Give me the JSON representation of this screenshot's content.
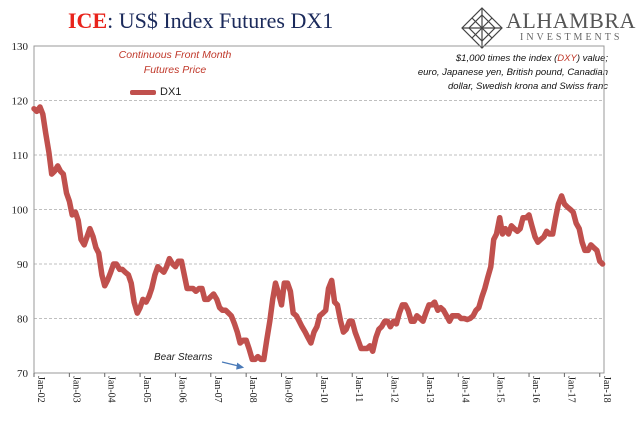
{
  "title_prefix": "ICE",
  "title_rest": ": US$ Index Futures DX1",
  "logo": {
    "name": "ALHAMBRA",
    "sub": "INVESTMENTS",
    "icon": "diamond-lattice-icon"
  },
  "annotation_left": [
    "Continuous Front Month",
    "Futures Price"
  ],
  "annotation_right": {
    "line1_pre": "$1,000 times the index (",
    "line1_dxy": "DXY",
    "line1_post": ") value;",
    "line2": "euro, Japanese yen, British pound, Canadian",
    "line3": "dollar, Swedish krona and Swiss franc"
  },
  "bear_label": "Bear Stearns",
  "colors": {
    "series": "#c0504d",
    "title_red": "#e8231b",
    "title_navy": "#1b2a5b",
    "grid": "#bfbfbf"
  },
  "chart_data": {
    "type": "line",
    "title": "ICE: US$ Index Futures DX1",
    "ylim": [
      70,
      130
    ],
    "yticks": [
      70,
      80,
      90,
      100,
      110,
      120,
      130
    ],
    "xlim": [
      2002.0,
      2018.12
    ],
    "xticks": [
      {
        "x": 2002,
        "year": "02"
      },
      {
        "x": 2003,
        "year": "03"
      },
      {
        "x": 2004,
        "year": "04"
      },
      {
        "x": 2005,
        "year": "05"
      },
      {
        "x": 2006,
        "year": "06"
      },
      {
        "x": 2007,
        "year": "07"
      },
      {
        "x": 2008,
        "year": "08"
      },
      {
        "x": 2009,
        "year": "09"
      },
      {
        "x": 2010,
        "year": "10"
      },
      {
        "x": 2011,
        "year": "11"
      },
      {
        "x": 2012,
        "year": "12"
      },
      {
        "x": 2013,
        "year": "13"
      },
      {
        "x": 2014,
        "year": "14"
      },
      {
        "x": 2015,
        "year": "15"
      },
      {
        "x": 2016,
        "year": "16"
      },
      {
        "x": 2017,
        "year": "17"
      },
      {
        "x": 2018,
        "year": "18"
      }
    ],
    "xtick_prefix": "Jan",
    "grid": true,
    "legend_position": "top-left",
    "series": [
      {
        "name": "DX1",
        "x": [
          2002.0,
          2002.08,
          2002.17,
          2002.25,
          2002.33,
          2002.42,
          2002.5,
          2002.58,
          2002.67,
          2002.75,
          2002.83,
          2002.92,
          2003.0,
          2003.08,
          2003.17,
          2003.25,
          2003.33,
          2003.42,
          2003.5,
          2003.58,
          2003.67,
          2003.75,
          2003.83,
          2003.92,
          2004.0,
          2004.08,
          2004.17,
          2004.25,
          2004.33,
          2004.42,
          2004.5,
          2004.58,
          2004.67,
          2004.75,
          2004.83,
          2004.92,
          2005.0,
          2005.08,
          2005.17,
          2005.25,
          2005.33,
          2005.42,
          2005.5,
          2005.58,
          2005.67,
          2005.75,
          2005.83,
          2005.92,
          2006.0,
          2006.08,
          2006.17,
          2006.25,
          2006.33,
          2006.42,
          2006.5,
          2006.58,
          2006.67,
          2006.75,
          2006.83,
          2006.92,
          2007.0,
          2007.08,
          2007.17,
          2007.25,
          2007.33,
          2007.42,
          2007.5,
          2007.58,
          2007.67,
          2007.75,
          2007.83,
          2007.92,
          2008.0,
          2008.08,
          2008.17,
          2008.25,
          2008.33,
          2008.42,
          2008.5,
          2008.58,
          2008.67,
          2008.75,
          2008.83,
          2008.92,
          2009.0,
          2009.08,
          2009.17,
          2009.25,
          2009.33,
          2009.42,
          2009.5,
          2009.58,
          2009.67,
          2009.75,
          2009.83,
          2009.92,
          2010.0,
          2010.08,
          2010.17,
          2010.25,
          2010.33,
          2010.42,
          2010.5,
          2010.58,
          2010.67,
          2010.75,
          2010.83,
          2010.92,
          2011.0,
          2011.08,
          2011.17,
          2011.25,
          2011.33,
          2011.42,
          2011.5,
          2011.58,
          2011.67,
          2011.75,
          2011.83,
          2011.92,
          2012.0,
          2012.08,
          2012.17,
          2012.25,
          2012.33,
          2012.42,
          2012.5,
          2012.58,
          2012.67,
          2012.75,
          2012.83,
          2012.92,
          2013.0,
          2013.08,
          2013.17,
          2013.25,
          2013.33,
          2013.42,
          2013.5,
          2013.58,
          2013.67,
          2013.75,
          2013.83,
          2013.92,
          2014.0,
          2014.08,
          2014.17,
          2014.25,
          2014.33,
          2014.42,
          2014.5,
          2014.58,
          2014.67,
          2014.75,
          2014.83,
          2014.92,
          2015.0,
          2015.08,
          2015.17,
          2015.25,
          2015.33,
          2015.42,
          2015.5,
          2015.58,
          2015.67,
          2015.75,
          2015.83,
          2015.92,
          2016.0,
          2016.08,
          2016.17,
          2016.25,
          2016.33,
          2016.42,
          2016.5,
          2016.58,
          2016.67,
          2016.75,
          2016.83,
          2016.92,
          2017.0,
          2017.08,
          2017.17,
          2017.25,
          2017.33,
          2017.42,
          2017.5,
          2017.58,
          2017.67,
          2017.75,
          2017.83,
          2017.92,
          2018.0,
          2018.08
        ],
        "values": [
          118.5,
          118.0,
          118.8,
          117.5,
          114.0,
          110.5,
          106.5,
          107.0,
          108.0,
          107.0,
          106.5,
          103.0,
          101.5,
          99.0,
          99.5,
          98.0,
          94.5,
          93.5,
          95.0,
          96.5,
          95.0,
          93.0,
          92.0,
          88.0,
          86.0,
          87.0,
          88.5,
          90.0,
          90.0,
          89.0,
          89.0,
          88.5,
          88.0,
          86.5,
          83.0,
          81.0,
          82.0,
          83.5,
          83.0,
          84.0,
          85.5,
          88.0,
          89.5,
          89.0,
          88.5,
          89.5,
          91.0,
          90.0,
          89.5,
          90.5,
          90.5,
          88.0,
          85.5,
          85.5,
          85.5,
          85.0,
          85.5,
          85.5,
          83.5,
          83.5,
          84.0,
          84.5,
          83.5,
          82.0,
          81.5,
          81.5,
          81.0,
          80.5,
          79.0,
          77.5,
          75.5,
          76.0,
          76.0,
          74.5,
          72.5,
          72.5,
          73.0,
          72.5,
          72.5,
          76.0,
          79.5,
          83.5,
          86.5,
          84.5,
          82.5,
          86.5,
          86.5,
          85.0,
          81.0,
          80.5,
          79.5,
          78.5,
          77.5,
          76.5,
          75.5,
          77.5,
          78.5,
          80.5,
          81.0,
          81.5,
          85.5,
          87.0,
          83.0,
          82.5,
          79.5,
          77.5,
          78.0,
          79.5,
          79.5,
          77.5,
          76.0,
          74.5,
          74.5,
          74.5,
          75.0,
          74.0,
          76.5,
          78.0,
          78.5,
          79.5,
          79.5,
          78.5,
          79.5,
          79.0,
          81.0,
          82.5,
          82.5,
          81.5,
          79.5,
          79.5,
          80.5,
          80.0,
          79.5,
          81.0,
          82.5,
          82.5,
          83.0,
          81.5,
          82.0,
          81.5,
          80.5,
          79.5,
          80.5,
          80.5,
          80.5,
          80.0,
          80.0,
          79.8,
          80.0,
          80.5,
          81.5,
          82.0,
          84.0,
          85.5,
          87.5,
          89.5,
          94.5,
          95.5,
          98.5,
          95.5,
          96.5,
          95.5,
          97.0,
          96.5,
          96.0,
          96.5,
          98.5,
          98.5,
          99.0,
          97.0,
          95.0,
          94.0,
          94.5,
          95.0,
          96.0,
          95.5,
          95.5,
          98.5,
          101.0,
          102.5,
          101.0,
          100.5,
          100.0,
          99.5,
          97.5,
          96.5,
          94.0,
          92.5,
          92.5,
          93.5,
          93.0,
          92.5,
          90.5,
          90.0
        ]
      }
    ]
  }
}
